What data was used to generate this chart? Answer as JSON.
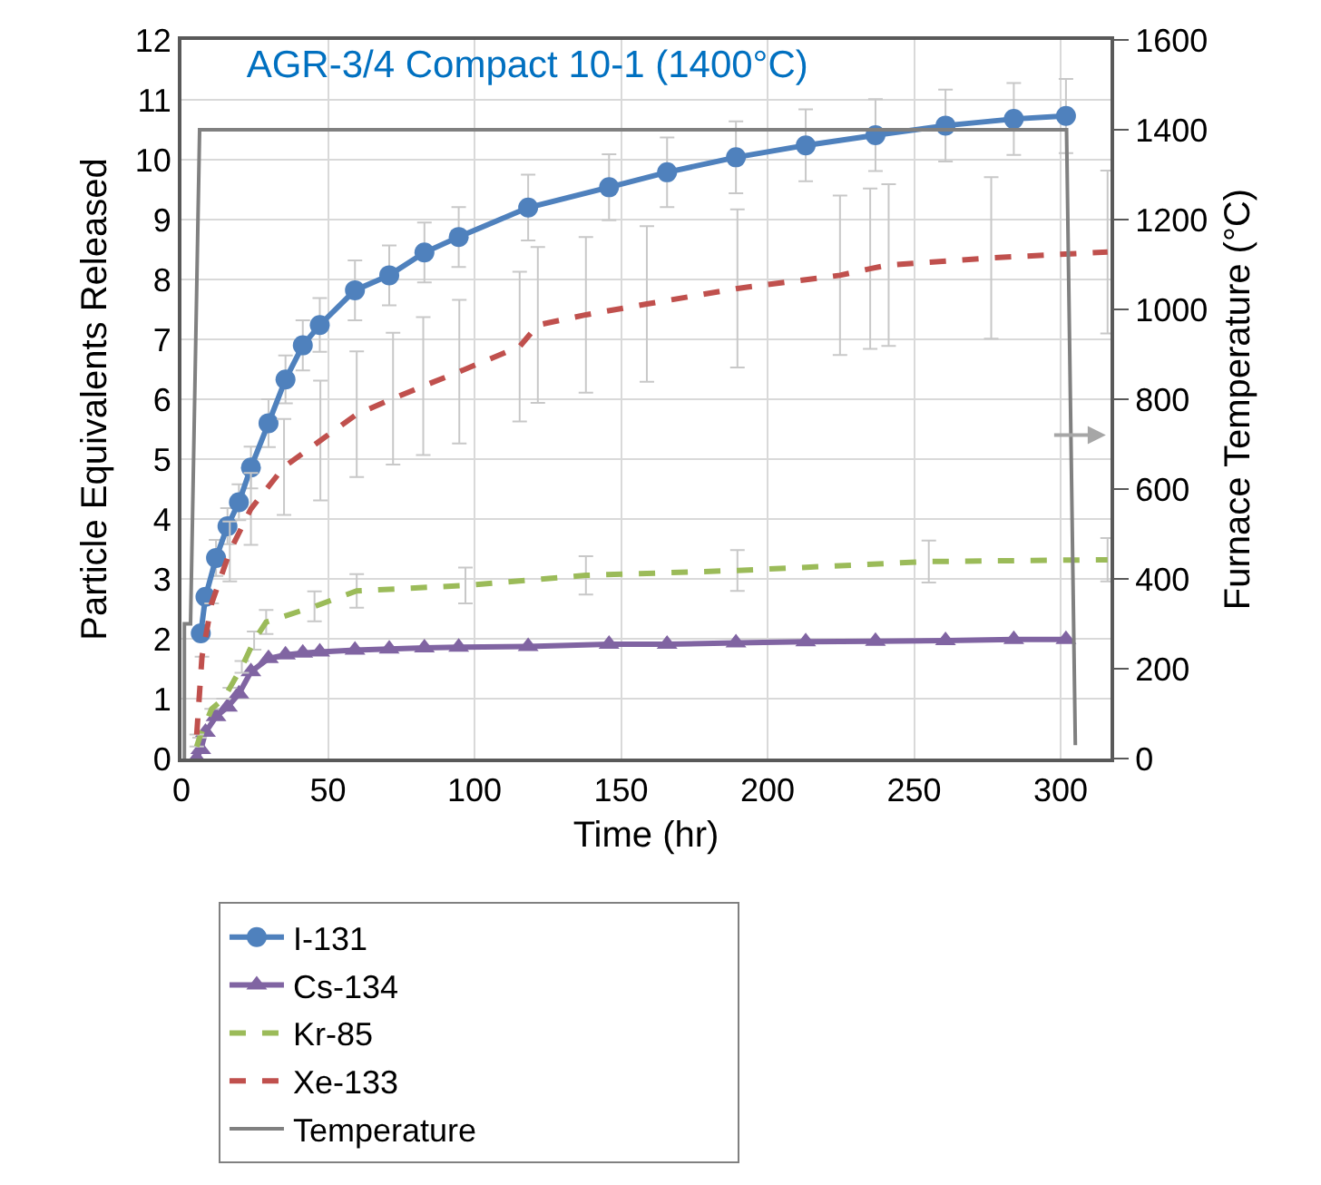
{
  "chart_data": {
    "type": "line",
    "title": "AGR-3/4 Compact 10-1 (1400°C)",
    "xlabel": "Time (hr)",
    "ylabel": "Particle Equivalents Released",
    "y2label": "Furnace Temperature (°C)",
    "xlim": [
      0,
      317
    ],
    "xticks": [
      0,
      50,
      100,
      150,
      200,
      250,
      300
    ],
    "ylim": [
      0,
      12
    ],
    "yticks": [
      0,
      1,
      2,
      3,
      4,
      5,
      6,
      7,
      8,
      9,
      10,
      11,
      12
    ],
    "y2lim": [
      0,
      1600
    ],
    "y2ticks": [
      0,
      200,
      400,
      600,
      800,
      1000,
      1200,
      1400,
      1600
    ],
    "grid": true,
    "legend": "bottom",
    "series": [
      {
        "name": "I-131",
        "color": "#4f81bd",
        "marker": "circle",
        "line_style": "solid",
        "x": [
          6.6,
          8.2,
          11.8,
          15.7,
          19.6,
          23.7,
          29.7,
          35.5,
          41.4,
          47.2,
          59.2,
          70.9,
          82.9,
          94.6,
          118.3,
          145.9,
          165.7,
          189.2,
          213,
          236.8,
          260.7,
          284,
          301.8
        ],
        "values": [
          2.09,
          2.7,
          3.35,
          3.88,
          4.28,
          4.86,
          5.6,
          6.33,
          6.9,
          7.24,
          7.82,
          8.07,
          8.45,
          8.71,
          9.2,
          9.54,
          9.79,
          10.04,
          10.24,
          10.41,
          10.57,
          10.68,
          10.73
        ],
        "errors": [
          null,
          null,
          0.3,
          0.3,
          0.3,
          0.35,
          0.4,
          0.4,
          0.42,
          0.45,
          0.5,
          0.5,
          0.5,
          0.5,
          0.55,
          0.55,
          0.58,
          0.6,
          0.6,
          0.6,
          0.6,
          0.6,
          0.62
        ]
      },
      {
        "name": "Cs-134",
        "color": "#8064a2",
        "marker": "triangle",
        "line_style": "solid",
        "x": [
          5.2,
          6.6,
          8.2,
          11.8,
          15.7,
          19.6,
          23.7,
          29.7,
          35.5,
          41.4,
          47.2,
          59.2,
          70.9,
          82.9,
          94.6,
          118.3,
          145.9,
          165.7,
          189.2,
          213,
          236.8,
          260.7,
          284,
          301.8
        ],
        "values": [
          0,
          0.15,
          0.44,
          0.7,
          0.86,
          1.08,
          1.45,
          1.67,
          1.73,
          1.76,
          1.78,
          1.81,
          1.83,
          1.85,
          1.86,
          1.87,
          1.91,
          1.91,
          1.93,
          1.95,
          1.96,
          1.97,
          1.99,
          1.99
        ]
      },
      {
        "name": "Kr-85",
        "color": "#9bbb59",
        "marker": "none",
        "line_style": "dashed",
        "x": [
          5.2,
          6.2,
          10.3,
          14.4,
          16.5,
          20.6,
          24.8,
          28.9,
          45.4,
          59.8,
          96.9,
          138,
          189.7,
          255,
          316
        ],
        "values": [
          0.2,
          0.35,
          0.83,
          1.0,
          1.18,
          1.53,
          1.97,
          2.28,
          2.54,
          2.8,
          2.89,
          3.06,
          3.14,
          3.29,
          3.32
        ],
        "errors": [
          null,
          null,
          null,
          null,
          null,
          0.1,
          0.15,
          0.2,
          0.25,
          0.28,
          0.3,
          0.32,
          0.34,
          0.35,
          0.36
        ]
      },
      {
        "name": "Xe-133",
        "color": "#c0504d",
        "marker": "none",
        "line_style": "dashed",
        "x": [
          5.2,
          7,
          10.3,
          16.5,
          23.7,
          35,
          47.4,
          59.8,
          72.2,
          82.5,
          94.8,
          115.4,
          121.6,
          138,
          158.8,
          189.7,
          224.7,
          235,
          241.3,
          276.3,
          316
        ],
        "values": [
          0.4,
          1.7,
          2.59,
          3.46,
          4.17,
          4.87,
          5.31,
          5.75,
          6.01,
          6.22,
          6.46,
          6.88,
          7.24,
          7.41,
          7.59,
          7.85,
          8.07,
          8.18,
          8.24,
          8.36,
          8.46
        ],
        "errors": [
          null,
          null,
          null,
          0.5,
          0.6,
          0.8,
          1.0,
          1.05,
          1.1,
          1.15,
          1.2,
          1.25,
          1.3,
          1.3,
          1.3,
          1.32,
          1.33,
          1.34,
          1.35,
          1.35,
          1.36
        ]
      },
      {
        "name": "Temperature",
        "color": "#808080",
        "marker": "none",
        "line_style": "solid",
        "axis": "y2",
        "x": [
          1,
          1,
          3.1,
          6.2,
          302,
          305
        ],
        "values": [
          0,
          300,
          300,
          1400,
          1400,
          30
        ]
      }
    ]
  }
}
